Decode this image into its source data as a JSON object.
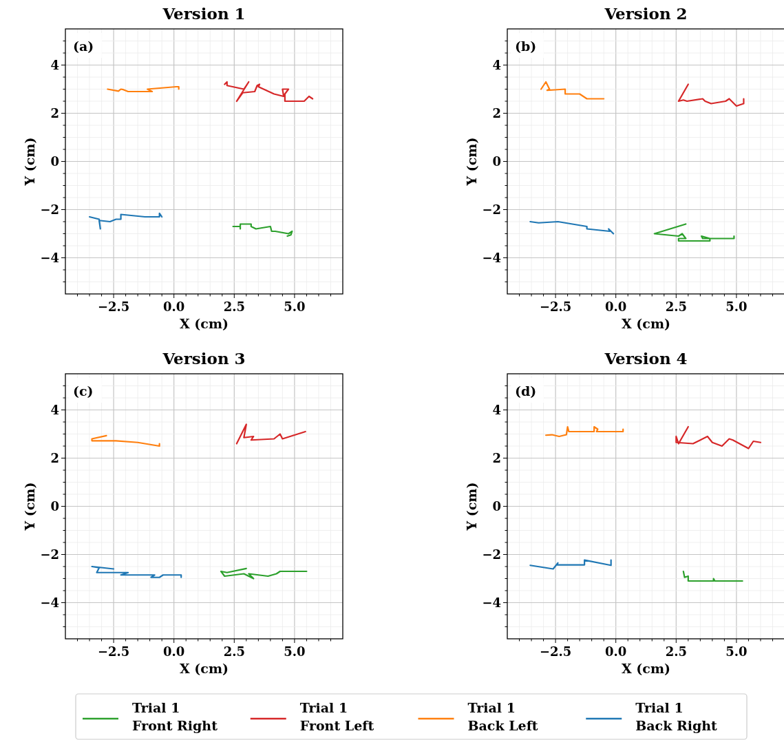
{
  "chart_data": [
    {
      "type": "line",
      "title": "Version 1",
      "xlabel": "X (cm)",
      "ylabel": "Y (cm)",
      "annotations": [
        "(a)"
      ],
      "grid": true,
      "legend": "bottom",
      "marker": "none",
      "line_style": "solid",
      "xlim": [
        -4.5,
        7.0
      ],
      "ylim": [
        -5.5,
        5.5
      ],
      "xticks": [
        {
          "value": -4.0,
          "label": null
        },
        {
          "value": -3.5,
          "label": null
        },
        {
          "value": -3.0,
          "label": null
        },
        {
          "value": -2.5,
          "label": "−2.5"
        },
        {
          "value": -2.0,
          "label": null
        },
        {
          "value": -1.5,
          "label": null
        },
        {
          "value": -1.0,
          "label": null
        },
        {
          "value": -0.5,
          "label": null
        },
        {
          "value": 0,
          "label": "0.0"
        },
        {
          "value": 0.5,
          "label": null
        },
        {
          "value": 1.0,
          "label": null
        },
        {
          "value": 1.5,
          "label": null
        },
        {
          "value": 2.0,
          "label": null
        },
        {
          "value": 2.5,
          "label": "2.5"
        },
        {
          "value": 3.0,
          "label": null
        },
        {
          "value": 3.5,
          "label": null
        },
        {
          "value": 4.0,
          "label": null
        },
        {
          "value": 4.5,
          "label": null
        },
        {
          "value": 5.0,
          "label": "5.0"
        },
        {
          "value": 5.5,
          "label": null
        },
        {
          "value": 6.0,
          "label": null
        },
        {
          "value": 6.5,
          "label": null
        }
      ],
      "yticks": [
        {
          "value": -5.0,
          "label": null
        },
        {
          "value": -4.5,
          "label": null
        },
        {
          "value": -4,
          "label": "−4"
        },
        {
          "value": -3.5,
          "label": null
        },
        {
          "value": -3.0,
          "label": null
        },
        {
          "value": -2.5,
          "label": null
        },
        {
          "value": -2,
          "label": "−2"
        },
        {
          "value": -1.5,
          "label": null
        },
        {
          "value": -1.0,
          "label": null
        },
        {
          "value": -0.5,
          "label": null
        },
        0,
        {
          "value": 0.5,
          "label": null
        },
        {
          "value": 1.0,
          "label": null
        },
        {
          "value": 1.5,
          "label": null
        },
        2,
        {
          "value": 2.5,
          "label": null
        },
        {
          "value": 3.0,
          "label": null
        },
        {
          "value": 3.5,
          "label": null
        },
        4,
        {
          "value": 4.5,
          "label": null
        },
        {
          "value": 5.0,
          "label": null
        }
      ],
      "series": [
        {
          "name": "Trial 1\nFront Right",
          "color": "#2ca02c",
          "x": [
            2.45,
            2.75,
            2.75,
            2.75,
            3.2,
            3.2,
            3.4,
            4.0,
            4.05,
            4.2,
            4.75,
            4.9,
            4.85,
            4.7
          ],
          "values": [
            -2.7,
            -2.7,
            -2.8,
            -2.6,
            -2.6,
            -2.7,
            -2.8,
            -2.7,
            -2.9,
            -2.9,
            -3.0,
            -2.9,
            -3.05,
            -3.1
          ]
        },
        {
          "name": "Trial 1\nFront Left",
          "color": "#d62728",
          "x": [
            2.1,
            2.2,
            2.2,
            2.9,
            3.1,
            2.6,
            2.85,
            3.35,
            3.45,
            3.55,
            3.5,
            4.15,
            4.55,
            4.5,
            4.75,
            4.6,
            4.6,
            5.4,
            5.6,
            5.75
          ],
          "values": [
            3.2,
            3.3,
            3.15,
            3.0,
            3.3,
            2.5,
            2.85,
            2.9,
            3.15,
            3.2,
            3.1,
            2.8,
            2.7,
            3.0,
            3.0,
            2.8,
            2.5,
            2.5,
            2.7,
            2.6
          ]
        },
        {
          "name": "Trial 1\nBack Left",
          "color": "#ff7f0e",
          "x": [
            -2.75,
            -2.3,
            -2.2,
            -2.1,
            -1.9,
            -0.9,
            -1.1,
            0.1,
            0.2,
            0.2
          ],
          "values": [
            3.0,
            2.92,
            3.0,
            2.98,
            2.9,
            2.9,
            3.0,
            3.1,
            3.1,
            3.0
          ]
        },
        {
          "name": "Trial 1\nBack Right",
          "color": "#1f77b4",
          "x": [
            -3.5,
            -3.1,
            -3.05,
            -3.1,
            -2.65,
            -2.4,
            -2.2,
            -2.2,
            -1.2,
            -0.6,
            -0.6,
            -0.5
          ],
          "values": [
            -2.3,
            -2.4,
            -2.8,
            -2.45,
            -2.5,
            -2.4,
            -2.4,
            -2.2,
            -2.3,
            -2.3,
            -2.15,
            -2.3
          ]
        }
      ]
    },
    {
      "type": "line",
      "title": "Version 2",
      "xlabel": "X (cm)",
      "ylabel": "Y (cm)",
      "annotations": [
        "(b)"
      ],
      "grid": true,
      "marker": "none",
      "line_style": "solid",
      "xlim": [
        -4.5,
        7.0
      ],
      "ylim": [
        -5.5,
        5.5
      ],
      "xticks": [
        {
          "value": -4.0,
          "label": null
        },
        {
          "value": -3.5,
          "label": null
        },
        {
          "value": -3.0,
          "label": null
        },
        {
          "value": -2.5,
          "label": "−2.5"
        },
        {
          "value": -2.0,
          "label": null
        },
        {
          "value": -1.5,
          "label": null
        },
        {
          "value": -1.0,
          "label": null
        },
        {
          "value": -0.5,
          "label": null
        },
        {
          "value": 0,
          "label": "0.0"
        },
        {
          "value": 0.5,
          "label": null
        },
        {
          "value": 1.0,
          "label": null
        },
        {
          "value": 1.5,
          "label": null
        },
        {
          "value": 2.0,
          "label": null
        },
        {
          "value": 2.5,
          "label": "2.5"
        },
        {
          "value": 3.0,
          "label": null
        },
        {
          "value": 3.5,
          "label": null
        },
        {
          "value": 4.0,
          "label": null
        },
        {
          "value": 4.5,
          "label": null
        },
        {
          "value": 5.0,
          "label": "5.0"
        },
        {
          "value": 5.5,
          "label": null
        },
        {
          "value": 6.0,
          "label": null
        },
        {
          "value": 6.5,
          "label": null
        }
      ],
      "yticks": [
        {
          "value": -5.0,
          "label": null
        },
        {
          "value": -4.5,
          "label": null
        },
        {
          "value": -4,
          "label": "−4"
        },
        {
          "value": -3.5,
          "label": null
        },
        {
          "value": -3.0,
          "label": null
        },
        {
          "value": -2.5,
          "label": null
        },
        {
          "value": -2,
          "label": "−2"
        },
        {
          "value": -1.5,
          "label": null
        },
        {
          "value": -1.0,
          "label": null
        },
        {
          "value": -0.5,
          "label": null
        },
        0,
        {
          "value": 0.5,
          "label": null
        },
        {
          "value": 1.0,
          "label": null
        },
        {
          "value": 1.5,
          "label": null
        },
        2,
        {
          "value": 2.5,
          "label": null
        },
        {
          "value": 3.0,
          "label": null
        },
        {
          "value": 3.5,
          "label": null
        },
        4,
        {
          "value": 4.5,
          "label": null
        },
        {
          "value": 5.0,
          "label": null
        }
      ],
      "series": [
        {
          "color": "#2ca02c",
          "x": [
            2.9,
            1.6,
            2.6,
            2.75,
            2.9,
            2.6,
            2.6,
            3.9,
            3.9,
            3.55,
            3.6,
            4.9,
            4.9
          ],
          "values": [
            -2.6,
            -3.0,
            -3.1,
            -3.0,
            -3.2,
            -3.2,
            -3.3,
            -3.3,
            -3.2,
            -3.1,
            -3.2,
            -3.2,
            -3.1
          ]
        },
        {
          "color": "#d62728",
          "x": [
            3.0,
            2.6,
            2.8,
            2.95,
            3.6,
            3.7,
            3.95,
            4.55,
            4.7,
            5.0,
            5.3,
            5.3
          ],
          "values": [
            3.2,
            2.5,
            2.55,
            2.5,
            2.6,
            2.5,
            2.4,
            2.5,
            2.6,
            2.3,
            2.4,
            2.6
          ]
        },
        {
          "color": "#ff7f0e",
          "x": [
            -3.1,
            -2.9,
            -2.75,
            -2.85,
            -2.1,
            -2.1,
            -1.5,
            -1.2,
            -0.5
          ],
          "values": [
            3.0,
            3.3,
            3.0,
            2.95,
            3.0,
            2.8,
            2.8,
            2.6,
            2.6
          ]
        },
        {
          "color": "#1f77b4",
          "x": [
            -3.55,
            -3.2,
            -2.4,
            -2.1,
            -1.2,
            -1.2,
            -0.25,
            -0.3,
            -0.1
          ],
          "values": [
            -2.5,
            -2.55,
            -2.5,
            -2.55,
            -2.7,
            -2.8,
            -2.9,
            -2.8,
            -3.0
          ]
        }
      ]
    },
    {
      "type": "line",
      "title": "Version 3",
      "xlabel": "X (cm)",
      "ylabel": "Y (cm)",
      "annotations": [
        "(c)"
      ],
      "grid": true,
      "marker": "none",
      "line_style": "solid",
      "xlim": [
        -4.5,
        7.0
      ],
      "ylim": [
        -5.5,
        5.5
      ],
      "xticks": [
        {
          "value": -4.0,
          "label": null
        },
        {
          "value": -3.5,
          "label": null
        },
        {
          "value": -3.0,
          "label": null
        },
        {
          "value": -2.5,
          "label": "−2.5"
        },
        {
          "value": -2.0,
          "label": null
        },
        {
          "value": -1.5,
          "label": null
        },
        {
          "value": -1.0,
          "label": null
        },
        {
          "value": -0.5,
          "label": null
        },
        {
          "value": 0,
          "label": "0.0"
        },
        {
          "value": 0.5,
          "label": null
        },
        {
          "value": 1.0,
          "label": null
        },
        {
          "value": 1.5,
          "label": null
        },
        {
          "value": 2.0,
          "label": null
        },
        {
          "value": 2.5,
          "label": "2.5"
        },
        {
          "value": 3.0,
          "label": null
        },
        {
          "value": 3.5,
          "label": null
        },
        {
          "value": 4.0,
          "label": null
        },
        {
          "value": 4.5,
          "label": null
        },
        {
          "value": 5.0,
          "label": "5.0"
        },
        {
          "value": 5.5,
          "label": null
        },
        {
          "value": 6.0,
          "label": null
        },
        {
          "value": 6.5,
          "label": null
        }
      ],
      "yticks": [
        {
          "value": -5.0,
          "label": null
        },
        {
          "value": -4.5,
          "label": null
        },
        {
          "value": -4,
          "label": "−4"
        },
        {
          "value": -3.5,
          "label": null
        },
        {
          "value": -3.0,
          "label": null
        },
        {
          "value": -2.5,
          "label": null
        },
        {
          "value": -2,
          "label": "−2"
        },
        {
          "value": -1.5,
          "label": null
        },
        {
          "value": -1.0,
          "label": null
        },
        {
          "value": -0.5,
          "label": null
        },
        0,
        {
          "value": 0.5,
          "label": null
        },
        {
          "value": 1.0,
          "label": null
        },
        {
          "value": 1.5,
          "label": null
        },
        2,
        {
          "value": 2.5,
          "label": null
        },
        {
          "value": 3.0,
          "label": null
        },
        {
          "value": 3.5,
          "label": null
        },
        4,
        {
          "value": 4.5,
          "label": null
        },
        {
          "value": 5.0,
          "label": null
        }
      ],
      "series": [
        {
          "color": "#2ca02c",
          "x": [
            3.0,
            2.2,
            1.95,
            2.1,
            2.9,
            3.3,
            3.1,
            3.9,
            4.25,
            4.4,
            5.5
          ],
          "values": [
            -2.58,
            -2.75,
            -2.7,
            -2.9,
            -2.8,
            -3.0,
            -2.8,
            -2.9,
            -2.8,
            -2.7,
            -2.7
          ]
        },
        {
          "color": "#d62728",
          "x": [
            2.6,
            3.0,
            2.9,
            3.3,
            3.2,
            4.15,
            4.4,
            4.5,
            5.45
          ],
          "values": [
            2.6,
            3.4,
            2.85,
            2.9,
            2.75,
            2.8,
            3.0,
            2.8,
            3.1
          ]
        },
        {
          "color": "#ff7f0e",
          "x": [
            -2.8,
            -3.4,
            -3.4,
            -2.4,
            -1.5,
            -0.6,
            -0.6
          ],
          "values": [
            2.93,
            2.8,
            2.72,
            2.72,
            2.65,
            2.5,
            2.6
          ]
        },
        {
          "color": "#1f77b4",
          "x": [
            -2.5,
            -3.4,
            -3.1,
            -3.2,
            -1.9,
            -2.2,
            -0.8,
            -0.95,
            -0.6,
            -0.45,
            0.3,
            0.3
          ],
          "values": [
            -2.6,
            -2.5,
            -2.55,
            -2.75,
            -2.75,
            -2.85,
            -2.85,
            -2.95,
            -2.95,
            -2.85,
            -2.85,
            -2.95
          ]
        }
      ]
    },
    {
      "type": "line",
      "title": "Version 4",
      "xlabel": "X (cm)",
      "ylabel": "Y (cm)",
      "annotations": [
        "(d)"
      ],
      "grid": true,
      "marker": "none",
      "line_style": "solid",
      "xlim": [
        -4.5,
        7.0
      ],
      "ylim": [
        -5.5,
        5.5
      ],
      "xticks": [
        {
          "value": -4.0,
          "label": null
        },
        {
          "value": -3.5,
          "label": null
        },
        {
          "value": -3.0,
          "label": null
        },
        {
          "value": -2.5,
          "label": "−2.5"
        },
        {
          "value": -2.0,
          "label": null
        },
        {
          "value": -1.5,
          "label": null
        },
        {
          "value": -1.0,
          "label": null
        },
        {
          "value": -0.5,
          "label": null
        },
        {
          "value": 0,
          "label": "0.0"
        },
        {
          "value": 0.5,
          "label": null
        },
        {
          "value": 1.0,
          "label": null
        },
        {
          "value": 1.5,
          "label": null
        },
        {
          "value": 2.0,
          "label": null
        },
        {
          "value": 2.5,
          "label": "2.5"
        },
        {
          "value": 3.0,
          "label": null
        },
        {
          "value": 3.5,
          "label": null
        },
        {
          "value": 4.0,
          "label": null
        },
        {
          "value": 4.5,
          "label": null
        },
        {
          "value": 5.0,
          "label": "5.0"
        },
        {
          "value": 5.5,
          "label": null
        },
        {
          "value": 6.0,
          "label": null
        },
        {
          "value": 6.5,
          "label": null
        }
      ],
      "yticks": [
        {
          "value": -5.0,
          "label": null
        },
        {
          "value": -4.5,
          "label": null
        },
        {
          "value": -4,
          "label": "−4"
        },
        {
          "value": -3.5,
          "label": null
        },
        {
          "value": -3.0,
          "label": null
        },
        {
          "value": -2.5,
          "label": null
        },
        {
          "value": -2,
          "label": "−2"
        },
        {
          "value": -1.5,
          "label": null
        },
        {
          "value": -1.0,
          "label": null
        },
        {
          "value": -0.5,
          "label": null
        },
        0,
        {
          "value": 0.5,
          "label": null
        },
        {
          "value": 1.0,
          "label": null
        },
        {
          "value": 1.5,
          "label": null
        },
        2,
        {
          "value": 2.5,
          "label": null
        },
        {
          "value": 3.0,
          "label": null
        },
        {
          "value": 3.5,
          "label": null
        },
        4,
        {
          "value": 4.5,
          "label": null
        },
        {
          "value": 5.0,
          "label": null
        }
      ],
      "series": [
        {
          "color": "#2ca02c",
          "x": [
            2.8,
            2.85,
            3.0,
            3.0,
            4.05,
            4.05,
            4.1,
            5.25
          ],
          "values": [
            -2.7,
            -2.95,
            -2.9,
            -3.1,
            -3.1,
            -3.0,
            -3.1,
            -3.1
          ]
        },
        {
          "color": "#d62728",
          "x": [
            3.0,
            2.6,
            2.5,
            2.5,
            3.2,
            3.6,
            3.8,
            4.0,
            4.4,
            4.7,
            4.85,
            5.5,
            5.7,
            6.0
          ],
          "values": [
            3.3,
            2.6,
            2.9,
            2.65,
            2.6,
            2.8,
            2.9,
            2.65,
            2.5,
            2.8,
            2.75,
            2.4,
            2.7,
            2.65
          ]
        },
        {
          "color": "#ff7f0e",
          "x": [
            -2.9,
            -2.65,
            -2.35,
            -2.05,
            -2.0,
            -1.95,
            -0.9,
            -0.9,
            -0.75,
            -0.8,
            0.3,
            0.3
          ],
          "values": [
            2.95,
            2.97,
            2.9,
            2.97,
            3.3,
            3.1,
            3.1,
            3.3,
            3.2,
            3.1,
            3.1,
            3.2
          ]
        },
        {
          "color": "#1f77b4",
          "x": [
            -3.55,
            -2.6,
            -2.4,
            -2.45,
            -1.3,
            -1.3,
            -0.2,
            -0.2
          ],
          "values": [
            -2.45,
            -2.6,
            -2.35,
            -2.43,
            -2.43,
            -2.23,
            -2.45,
            -2.23
          ]
        }
      ]
    }
  ]
}
